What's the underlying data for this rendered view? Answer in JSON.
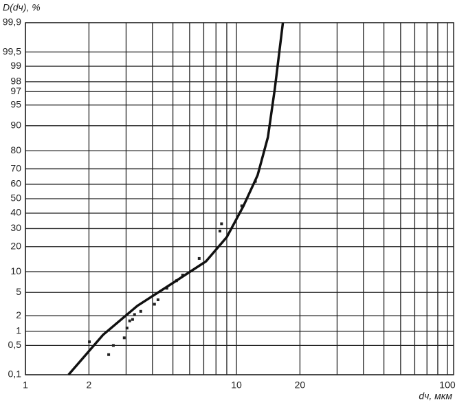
{
  "chart_data": {
    "type": "line",
    "y_label": "D(dч), %",
    "x_label": "dч, мкм",
    "x_scale": "log",
    "y_scale": "probability",
    "xlim": [
      1,
      107
    ],
    "ylim": [
      0.1,
      99.9
    ],
    "xticks": [
      1,
      2,
      10,
      20,
      100
    ],
    "x_minor_grid": [
      3,
      4,
      5,
      6,
      7,
      8,
      9,
      30,
      40,
      50,
      60,
      70,
      80,
      90
    ],
    "yticks": [
      {
        "value": 0.1,
        "label": "0,1"
      },
      {
        "value": 0.5,
        "label": "0,5"
      },
      1,
      2,
      5,
      10,
      20,
      30,
      40,
      50,
      60,
      70,
      80,
      90,
      95,
      97,
      98,
      99,
      {
        "value": 99.5,
        "label": "99,5"
      },
      {
        "value": 99.9,
        "label": "99,9"
      }
    ],
    "grid": true,
    "series": [
      {
        "style": "markers",
        "color": "#222",
        "x": [
          2.01,
          2.48,
          2.61,
          2.94,
          3.03,
          3.12,
          3.22,
          3.29,
          3.52,
          4.09,
          4.25,
          4.68,
          5.2,
          5.56,
          6.66,
          8.35,
          8.5,
          10.6,
          12.3
        ],
        "values": [
          0.6,
          0.31,
          0.5,
          0.73,
          1.16,
          1.6,
          1.7,
          2.1,
          2.4,
          3.2,
          3.8,
          5.8,
          7.5,
          9,
          14.7,
          28.5,
          33,
          45,
          62
        ]
      },
      {
        "style": "line",
        "color": "#111",
        "x": [
          1.6,
          2.33,
          3.39,
          4.94,
          7.18,
          9.0,
          10.8,
          12.6,
          14.1,
          15.2,
          16.6
        ],
        "values": [
          0.1,
          0.84,
          3,
          6.8,
          13.6,
          25,
          45,
          66,
          86,
          97.3,
          99.9
        ]
      }
    ]
  }
}
